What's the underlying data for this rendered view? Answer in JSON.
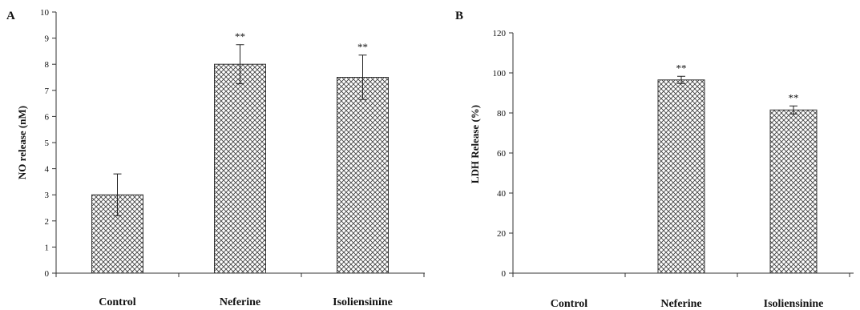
{
  "chart_data": [
    {
      "type": "bar",
      "panel_label": "A",
      "categories": [
        "Control",
        "Neferine",
        "Isoliensinine"
      ],
      "values": [
        3.0,
        8.0,
        7.5
      ],
      "errors": [
        0.8,
        0.75,
        0.85
      ],
      "annotations": [
        "",
        "**",
        "**"
      ],
      "ylabel": "NO release (nM)",
      "ylim": [
        0,
        10
      ],
      "yticks": [
        "0",
        "1",
        "2",
        "3",
        "4",
        "5",
        "6",
        "7",
        "8",
        "9",
        "10"
      ],
      "grid": false,
      "legend": "none"
    },
    {
      "type": "bar",
      "panel_label": "B",
      "categories": [
        "Control",
        "Neferine",
        "Isoliensinine"
      ],
      "values": [
        0,
        96.5,
        81.5
      ],
      "errors": [
        0,
        1.8,
        2.0
      ],
      "annotations": [
        "",
        "**",
        "**"
      ],
      "ylabel": "LDH Release (%)",
      "ylim": [
        0,
        120
      ],
      "yticks": [
        "0",
        "20",
        "40",
        "60",
        "80",
        "100",
        "120"
      ],
      "grid": false,
      "legend": "none"
    }
  ],
  "colors": {
    "axis": "#333333",
    "bar_fill": "#ffffff",
    "bar_pattern": "#444444",
    "text": "#111111"
  }
}
